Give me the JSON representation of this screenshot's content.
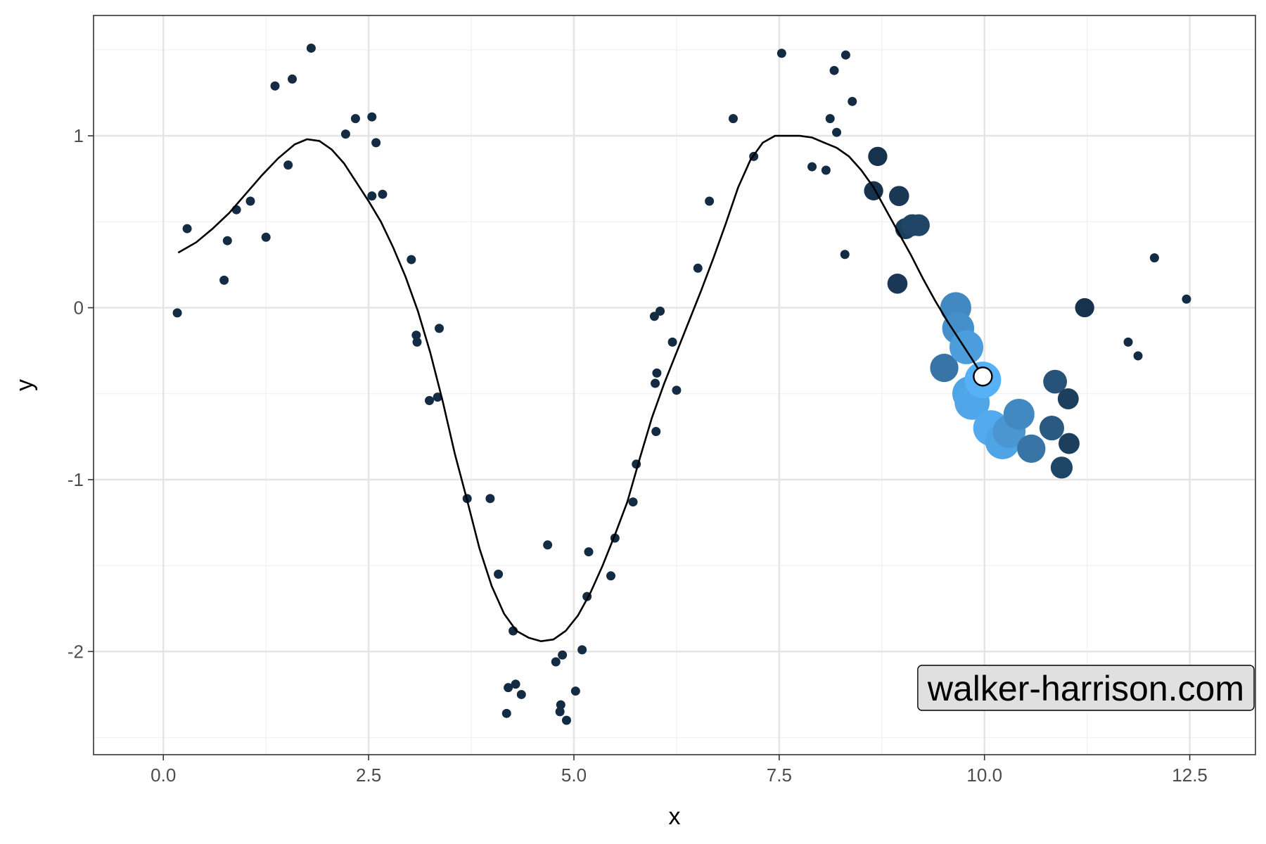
{
  "chart_data": {
    "type": "scatter",
    "xlabel": "x",
    "ylabel": "y",
    "xlim": [
      -0.85,
      13.3
    ],
    "ylim": [
      -2.6,
      1.7
    ],
    "x_ticks": [
      0.0,
      2.5,
      5.0,
      7.5,
      10.0,
      12.5
    ],
    "x_tick_labels": [
      "0.0",
      "2.5",
      "5.0",
      "7.5",
      "10.0",
      "12.5"
    ],
    "y_ticks": [
      -2,
      -1,
      0,
      1
    ],
    "y_tick_labels": [
      "-2",
      "-1",
      "0",
      "1"
    ],
    "grid": true,
    "theme": "bw",
    "watermark": "walker-harrison.com",
    "colors": {
      "point_dark": "#132B43",
      "point_light": "#56B1F7",
      "line": "#000000",
      "grid_major": "#e5e5e5",
      "grid_minor": "#f2f2f2",
      "panel_border": "#333333",
      "label_fill": "#e0e0e0"
    },
    "points": [
      [
        0.17,
        -0.03
      ],
      [
        0.29,
        0.46
      ],
      [
        0.74,
        0.16
      ],
      [
        0.78,
        0.39
      ],
      [
        0.89,
        0.57
      ],
      [
        1.06,
        0.62
      ],
      [
        1.25,
        0.41
      ],
      [
        1.36,
        1.29
      ],
      [
        1.52,
        0.83
      ],
      [
        1.57,
        1.33
      ],
      [
        1.8,
        1.51
      ],
      [
        2.22,
        1.01
      ],
      [
        2.34,
        1.1
      ],
      [
        2.54,
        1.11
      ],
      [
        2.54,
        0.65
      ],
      [
        2.59,
        0.96
      ],
      [
        2.67,
        0.66
      ],
      [
        3.02,
        0.28
      ],
      [
        3.08,
        -0.16
      ],
      [
        3.09,
        -0.2
      ],
      [
        3.24,
        -0.54
      ],
      [
        3.34,
        -0.52
      ],
      [
        3.36,
        -0.12
      ],
      [
        3.7,
        -1.11
      ],
      [
        3.98,
        -1.11
      ],
      [
        4.08,
        -1.55
      ],
      [
        4.18,
        -2.36
      ],
      [
        4.2,
        -2.21
      ],
      [
        4.26,
        -1.88
      ],
      [
        4.29,
        -2.19
      ],
      [
        4.36,
        -2.25
      ],
      [
        4.68,
        -1.38
      ],
      [
        4.78,
        -2.06
      ],
      [
        4.83,
        -2.35
      ],
      [
        4.84,
        -2.31
      ],
      [
        4.86,
        -2.02
      ],
      [
        4.91,
        -2.4
      ],
      [
        5.02,
        -2.23
      ],
      [
        5.1,
        -1.99
      ],
      [
        5.16,
        -1.68
      ],
      [
        5.18,
        -1.42
      ],
      [
        5.45,
        -1.56
      ],
      [
        5.5,
        -1.34
      ],
      [
        5.72,
        -1.13
      ],
      [
        5.76,
        -0.91
      ],
      [
        5.98,
        -0.05
      ],
      [
        5.99,
        -0.44
      ],
      [
        6.0,
        -0.72
      ],
      [
        6.01,
        -0.38
      ],
      [
        6.05,
        -0.02
      ],
      [
        6.2,
        -0.2
      ],
      [
        6.25,
        -0.48
      ],
      [
        6.51,
        0.23
      ],
      [
        6.65,
        0.62
      ],
      [
        6.94,
        1.1
      ],
      [
        7.19,
        0.88
      ],
      [
        7.53,
        1.48
      ],
      [
        7.9,
        0.82
      ],
      [
        8.07,
        0.8
      ],
      [
        8.12,
        1.1
      ],
      [
        8.17,
        1.38
      ],
      [
        8.2,
        1.02
      ],
      [
        8.3,
        0.31
      ],
      [
        8.31,
        1.47
      ],
      [
        8.39,
        1.2
      ],
      [
        11.75,
        -0.2
      ],
      [
        11.87,
        -0.28
      ],
      [
        12.07,
        0.29
      ],
      [
        12.46,
        0.05
      ]
    ],
    "neighbor_points": [
      [
        8.65,
        0.68,
        0.05
      ],
      [
        8.7,
        0.88,
        0.05
      ],
      [
        8.94,
        0.14,
        0.1
      ],
      [
        8.96,
        0.65,
        0.1
      ],
      [
        9.04,
        0.46,
        0.15
      ],
      [
        9.12,
        0.48,
        0.2
      ],
      [
        9.2,
        0.48,
        0.2
      ],
      [
        9.51,
        -0.35,
        0.55
      ],
      [
        9.65,
        0.0,
        0.7
      ],
      [
        9.68,
        -0.12,
        0.75
      ],
      [
        9.78,
        -0.23,
        0.85
      ],
      [
        9.82,
        -0.5,
        0.9
      ],
      [
        9.85,
        -0.55,
        0.92
      ],
      [
        9.98,
        -0.42,
        1.0
      ],
      [
        10.08,
        -0.7,
        0.95
      ],
      [
        10.22,
        -0.78,
        0.9
      ],
      [
        10.3,
        -0.72,
        0.8
      ],
      [
        10.42,
        -0.62,
        0.7
      ],
      [
        10.57,
        -0.82,
        0.55
      ],
      [
        10.82,
        -0.7,
        0.35
      ],
      [
        10.86,
        -0.43,
        0.3
      ],
      [
        10.94,
        -0.93,
        0.2
      ],
      [
        11.02,
        -0.53,
        0.15
      ],
      [
        11.03,
        -0.79,
        0.15
      ],
      [
        11.22,
        0.0,
        0.05
      ]
    ],
    "smooth_line": [
      [
        0.18,
        0.32
      ],
      [
        0.4,
        0.38
      ],
      [
        0.6,
        0.46
      ],
      [
        0.8,
        0.55
      ],
      [
        1.0,
        0.66
      ],
      [
        1.2,
        0.77
      ],
      [
        1.4,
        0.87
      ],
      [
        1.6,
        0.95
      ],
      [
        1.75,
        0.98
      ],
      [
        1.9,
        0.97
      ],
      [
        2.05,
        0.92
      ],
      [
        2.2,
        0.84
      ],
      [
        2.35,
        0.73
      ],
      [
        2.5,
        0.62
      ],
      [
        2.65,
        0.5
      ],
      [
        2.8,
        0.35
      ],
      [
        2.95,
        0.18
      ],
      [
        3.1,
        -0.02
      ],
      [
        3.25,
        -0.26
      ],
      [
        3.4,
        -0.54
      ],
      [
        3.55,
        -0.85
      ],
      [
        3.7,
        -1.12
      ],
      [
        3.85,
        -1.4
      ],
      [
        4.0,
        -1.62
      ],
      [
        4.15,
        -1.78
      ],
      [
        4.3,
        -1.88
      ],
      [
        4.45,
        -1.92
      ],
      [
        4.6,
        -1.94
      ],
      [
        4.75,
        -1.93
      ],
      [
        4.9,
        -1.88
      ],
      [
        5.05,
        -1.79
      ],
      [
        5.2,
        -1.66
      ],
      [
        5.35,
        -1.5
      ],
      [
        5.5,
        -1.32
      ],
      [
        5.65,
        -1.13
      ],
      [
        5.8,
        -0.88
      ],
      [
        5.95,
        -0.64
      ],
      [
        6.1,
        -0.44
      ],
      [
        6.25,
        -0.26
      ],
      [
        6.4,
        -0.08
      ],
      [
        6.55,
        0.1
      ],
      [
        6.7,
        0.29
      ],
      [
        6.85,
        0.49
      ],
      [
        7.0,
        0.7
      ],
      [
        7.15,
        0.86
      ],
      [
        7.3,
        0.96
      ],
      [
        7.45,
        1.0
      ],
      [
        7.6,
        1.0
      ],
      [
        7.75,
        1.0
      ],
      [
        7.9,
        0.99
      ],
      [
        8.05,
        0.96
      ],
      [
        8.2,
        0.93
      ],
      [
        8.35,
        0.88
      ],
      [
        8.5,
        0.8
      ],
      [
        8.65,
        0.7
      ],
      [
        8.8,
        0.57
      ],
      [
        8.95,
        0.44
      ],
      [
        9.1,
        0.31
      ],
      [
        9.25,
        0.17
      ],
      [
        9.4,
        0.04
      ],
      [
        9.55,
        -0.08
      ],
      [
        9.7,
        -0.19
      ],
      [
        9.85,
        -0.3
      ],
      [
        9.98,
        -0.4
      ]
    ],
    "current_point": [
      9.98,
      -0.4
    ]
  }
}
